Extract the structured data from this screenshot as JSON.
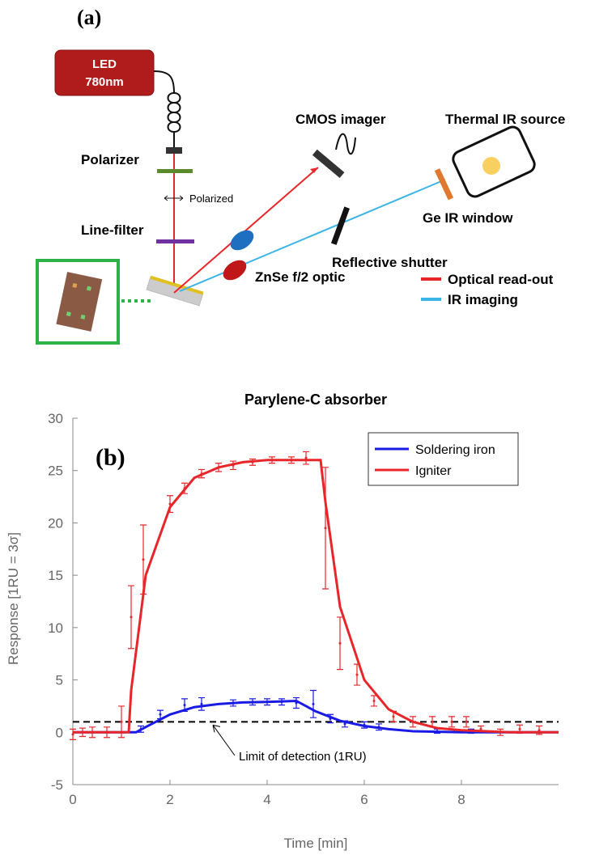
{
  "panel_a": {
    "label": "(a)",
    "led": [
      "LED",
      "780nm"
    ],
    "polarizer": "Polarizer",
    "polarized": "Polarized",
    "line_filter": "Line-filter",
    "cmos": "CMOS imager",
    "thermal_source": "Thermal IR source",
    "ge_window": "Ge IR window",
    "shutter": "Reflective shutter",
    "optic": "ZnSe f/2 optic",
    "legend": [
      {
        "label": "Optical read-out",
        "color": "#e8262a"
      },
      {
        "label": "IR imaging",
        "color": "#3bb5e6"
      }
    ]
  },
  "chart_data": {
    "type": "line",
    "panel_label": "(b)",
    "title": "Parylene-C absorber",
    "xlabel": "Time [min]",
    "ylabel": "Response [1RU = 3σ]",
    "xlim": [
      0,
      10
    ],
    "xticks": [
      0,
      2,
      4,
      6,
      8
    ],
    "ylim": [
      -5,
      30
    ],
    "yticks": [
      -5,
      0,
      5,
      10,
      15,
      20,
      25,
      30
    ],
    "legend": "upper right",
    "series": [
      {
        "name": "Soldering iron",
        "color": "#1a1ae6",
        "x": [
          0,
          1.3,
          1.5,
          2,
          2.5,
          3,
          3.5,
          4,
          4.6,
          5,
          5.5,
          6,
          6.5,
          7,
          8,
          10
        ],
        "values": [
          0,
          0,
          0.5,
          1.7,
          2.4,
          2.7,
          2.85,
          2.9,
          3,
          2,
          1.1,
          0.6,
          0.3,
          0.1,
          0,
          0
        ]
      },
      {
        "name": "Igniter",
        "color": "#e8262a",
        "x": [
          0,
          1.15,
          1.2,
          1.5,
          2,
          2.5,
          3,
          3.5,
          4,
          5,
          5.1,
          5.2,
          5.5,
          6,
          6.5,
          7,
          7.5,
          8,
          9,
          10
        ],
        "values": [
          0,
          0,
          4,
          15,
          21.5,
          24.3,
          25.3,
          25.8,
          26,
          26,
          26,
          22,
          12,
          5,
          2.2,
          1,
          0.4,
          0.2,
          0,
          0
        ]
      }
    ],
    "measurements": [
      {
        "color": "#1a1ae6",
        "x": [
          1.4,
          1.8,
          2.3,
          2.65,
          3.3,
          3.7,
          4,
          4.3,
          4.6,
          4.95,
          5.3,
          5.6,
          6,
          6.3,
          7.5,
          8.2
        ],
        "values": [
          0.3,
          1.7,
          2.6,
          2.7,
          2.8,
          2.9,
          2.9,
          2.9,
          2.8,
          2.7,
          1.3,
          0.8,
          0.7,
          0.5,
          0.1,
          0.1
        ],
        "errors": [
          0.3,
          0.4,
          0.6,
          0.6,
          0.3,
          0.3,
          0.3,
          0.3,
          0.5,
          1.3,
          0.4,
          0.3,
          0.3,
          0.3,
          0.2,
          0.2
        ]
      },
      {
        "color": "#e8262a",
        "x": [
          0,
          0.2,
          0.4,
          0.7,
          1,
          1.2,
          1.45,
          2,
          2.3,
          2.65,
          3,
          3.3,
          3.7,
          4.1,
          4.5,
          4.8,
          5.2,
          5.5,
          5.85,
          6.2,
          6.6,
          7,
          7.4,
          7.8,
          8.1,
          8.4,
          8.8,
          9.2,
          9.6
        ],
        "values": [
          -0.2,
          0,
          0,
          0,
          1,
          11,
          16.5,
          21.8,
          23.3,
          24.7,
          25.3,
          25.5,
          25.8,
          26,
          26,
          26.2,
          19.5,
          8.5,
          5.5,
          3,
          1.5,
          1,
          1,
          1,
          1,
          0.3,
          0,
          0.3,
          0.2
        ],
        "errors": [
          0.5,
          0.4,
          0.5,
          0.5,
          1.5,
          3,
          3.3,
          0.8,
          0.5,
          0.4,
          0.4,
          0.4,
          0.3,
          0.3,
          0.3,
          0.6,
          5.8,
          2.5,
          1,
          0.5,
          0.5,
          0.5,
          0.5,
          0.5,
          0.5,
          0.3,
          0.3,
          0.4,
          0.4
        ]
      }
    ],
    "threshold": {
      "value": 1,
      "label": "Limit of detection (1RU)"
    }
  }
}
